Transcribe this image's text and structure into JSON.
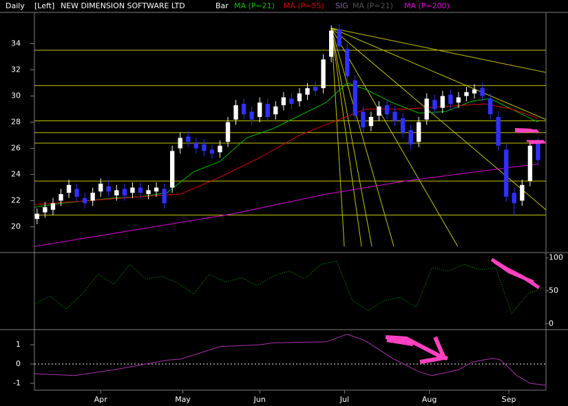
{
  "header": {
    "period": "Daily",
    "scale_side": "[Left]",
    "title": "NEW DIMENSION SOFTWARE LTD",
    "style": "Bar",
    "sig": "SIG",
    "sig_ma": "MA (P=21)"
  },
  "chart_data": [
    {
      "type": "candlestick",
      "xlim": [
        0,
        193
      ],
      "ylim": [
        18.4,
        35.5
      ],
      "xticks": [
        {
          "value": 25,
          "label": "Apr"
        },
        {
          "value": 56,
          "label": "May"
        },
        {
          "value": 85,
          "label": "Jun"
        },
        {
          "value": 117,
          "label": "Jul"
        },
        {
          "value": 149,
          "label": "Aug"
        },
        {
          "value": 179,
          "label": "Sep"
        }
      ],
      "yticks": [
        20,
        22,
        24,
        26,
        28,
        30,
        32,
        34
      ],
      "up_color": "#ffffff",
      "down_color": "#3030ff",
      "candles": {
        "x": [
          1,
          4,
          7,
          10,
          13,
          16,
          19,
          22,
          25,
          28,
          31,
          34,
          37,
          40,
          43,
          46,
          49,
          52,
          55,
          58,
          61,
          64,
          67,
          70,
          73,
          76,
          79,
          82,
          85,
          88,
          91,
          94,
          97,
          100,
          103,
          106,
          109,
          112,
          115,
          118,
          121,
          124,
          127,
          130,
          133,
          136,
          139,
          142,
          145,
          148,
          151,
          154,
          157,
          160,
          163,
          166,
          169,
          172,
          175,
          178,
          181,
          184,
          187,
          190
        ],
        "open": [
          20.6,
          21.1,
          21.3,
          22.0,
          22.6,
          22.9,
          22.2,
          22.0,
          22.7,
          23.1,
          22.4,
          22.9,
          22.6,
          23.0,
          22.5,
          22.7,
          22.9,
          23.0,
          26.0,
          26.9,
          26.4,
          26.3,
          25.9,
          25.7,
          26.5,
          28.2,
          29.4,
          28.8,
          28.4,
          29.4,
          28.6,
          29.3,
          29.8,
          29.6,
          30.1,
          30.7,
          30.6,
          33.0,
          35.1,
          33.6,
          31.2,
          28.8,
          27.7,
          28.5,
          29.3,
          28.8,
          28.3,
          27.4,
          26.5,
          28.2,
          29.7,
          29.1,
          30.1,
          29.5,
          30.0,
          30.2,
          30.6,
          29.8,
          28.4,
          25.9,
          22.6,
          22.0,
          23.5,
          26.4
        ],
        "high": [
          21.4,
          21.9,
          22.2,
          22.9,
          23.6,
          23.3,
          22.6,
          23.0,
          23.7,
          23.5,
          23.2,
          23.3,
          23.4,
          23.4,
          23.2,
          23.4,
          23.3,
          26.2,
          27.2,
          27.3,
          26.8,
          26.7,
          26.3,
          26.6,
          28.4,
          29.7,
          29.8,
          29.2,
          29.9,
          29.8,
          29.6,
          30.3,
          30.2,
          30.6,
          31.0,
          31.1,
          33.2,
          35.4,
          35.5,
          34.0,
          31.6,
          29.2,
          28.8,
          29.6,
          29.7,
          29.2,
          28.7,
          27.8,
          28.4,
          30.2,
          30.1,
          30.4,
          30.5,
          30.3,
          30.7,
          30.9,
          31.0,
          30.2,
          28.8,
          26.3,
          23.0,
          23.6,
          26.6,
          26.8
        ],
        "low": [
          20.2,
          20.7,
          20.9,
          21.6,
          22.2,
          21.9,
          21.4,
          21.6,
          22.3,
          22.3,
          22.0,
          22.0,
          22.2,
          22.2,
          22.1,
          22.3,
          21.4,
          22.6,
          25.6,
          26.1,
          25.6,
          25.4,
          25.2,
          25.3,
          26.1,
          27.8,
          28.2,
          27.8,
          28.0,
          28.0,
          28.2,
          28.9,
          29.0,
          29.2,
          29.7,
          30.0,
          30.2,
          32.6,
          33.4,
          31.1,
          28.1,
          27.2,
          27.3,
          28.1,
          28.2,
          27.7,
          26.8,
          25.9,
          26.1,
          27.8,
          28.6,
          28.7,
          29.0,
          29.1,
          29.6,
          29.8,
          29.6,
          28.2,
          25.8,
          21.9,
          20.9,
          21.6,
          23.1,
          24.7
        ],
        "close": [
          21.0,
          21.5,
          21.8,
          22.5,
          23.2,
          22.3,
          21.8,
          22.6,
          23.3,
          22.7,
          22.8,
          22.4,
          23.0,
          22.6,
          22.8,
          23.0,
          21.8,
          25.8,
          26.8,
          26.5,
          26.0,
          25.8,
          25.6,
          26.2,
          28.0,
          29.3,
          28.6,
          28.2,
          29.5,
          28.4,
          29.2,
          29.9,
          29.4,
          30.2,
          30.6,
          30.4,
          32.8,
          35.0,
          33.8,
          31.5,
          28.5,
          27.6,
          28.4,
          29.2,
          28.6,
          28.1,
          27.2,
          26.3,
          28.0,
          29.8,
          29.0,
          30.0,
          29.4,
          29.9,
          30.3,
          30.5,
          30.0,
          28.6,
          26.2,
          22.3,
          21.8,
          23.2,
          26.2,
          25.1
        ]
      },
      "series": [
        {
          "name": "MA (P=21)",
          "type": "line",
          "color": "#00c000",
          "x": [
            0,
            10,
            20,
            30,
            40,
            50,
            60,
            70,
            80,
            90,
            100,
            110,
            118,
            125,
            135,
            145,
            155,
            165,
            172,
            180,
            190
          ],
          "values": [
            21.5,
            21.8,
            22.0,
            22.2,
            22.3,
            22.6,
            24.2,
            25.0,
            26.8,
            27.5,
            28.5,
            29.5,
            31.0,
            30.5,
            29.5,
            28.7,
            28.8,
            29.6,
            29.8,
            29.0,
            28.0
          ]
        },
        {
          "name": "MA (P=55)",
          "type": "line",
          "color": "#e00000",
          "x": [
            0,
            20,
            40,
            55,
            70,
            85,
            100,
            115,
            125,
            140,
            155,
            170,
            180,
            190
          ],
          "values": [
            21.7,
            22.0,
            22.3,
            22.5,
            23.8,
            25.3,
            27.0,
            28.2,
            29.0,
            29.0,
            29.2,
            29.4,
            29.0,
            28.3
          ]
        },
        {
          "name": "MA (P=200)",
          "type": "line",
          "color": "#e000e0",
          "x": [
            0,
            75,
            110,
            140,
            170,
            190
          ],
          "values": [
            18.5,
            21.0,
            22.5,
            23.5,
            24.3,
            24.8
          ]
        }
      ],
      "hlines": [
        33.5,
        30.8,
        28.1,
        27.2,
        26.4,
        23.5,
        20.9
      ],
      "hline_color": "#c8c800",
      "fan": {
        "origin": [
          112,
          35.2
        ],
        "ends": [
          [
            193,
            31.8
          ],
          [
            193,
            28.2
          ],
          [
            193,
            21.3
          ],
          [
            116.9,
            18.5
          ],
          [
            123.4,
            18.5
          ],
          [
            127.3,
            18.5
          ],
          [
            135.6,
            18.5
          ],
          [
            159.7,
            18.5
          ]
        ]
      }
    },
    {
      "type": "line",
      "ylim": [
        -8,
        107
      ],
      "yticks": [
        0,
        50,
        100
      ],
      "series": [
        {
          "type": "line",
          "color": "#00b000",
          "style": "dotted",
          "x": [
            0,
            6,
            12,
            18,
            24,
            30,
            36,
            42,
            48,
            54,
            60,
            66,
            72,
            78,
            84,
            90,
            96,
            102,
            108,
            114,
            120,
            126,
            132,
            138,
            144,
            150,
            156,
            162,
            168,
            174,
            180,
            186,
            192
          ],
          "values": [
            30,
            42,
            22,
            45,
            75,
            60,
            90,
            68,
            72,
            62,
            45,
            75,
            63,
            70,
            58,
            72,
            80,
            68,
            90,
            95,
            35,
            20,
            35,
            40,
            25,
            85,
            80,
            90,
            82,
            85,
            15,
            45,
            55
          ]
        }
      ]
    },
    {
      "type": "line",
      "ylim": [
        -1.32,
        1.75
      ],
      "yticks": [
        -1,
        0,
        1
      ],
      "zero_line": true,
      "series": [
        {
          "type": "line",
          "color": "#b030b0",
          "x": [
            0,
            15,
            30,
            50,
            55,
            70,
            85,
            90,
            110,
            118,
            125,
            135,
            145,
            150,
            160,
            165,
            173,
            176,
            182,
            187,
            193
          ],
          "values": [
            -0.5,
            -0.6,
            -0.3,
            0.2,
            0.25,
            0.9,
            1.0,
            1.1,
            1.15,
            1.55,
            1.2,
            0.3,
            -0.4,
            -0.6,
            -0.3,
            0.1,
            0.3,
            0.2,
            -0.6,
            -1.0,
            -1.1
          ]
        }
      ]
    }
  ]
}
